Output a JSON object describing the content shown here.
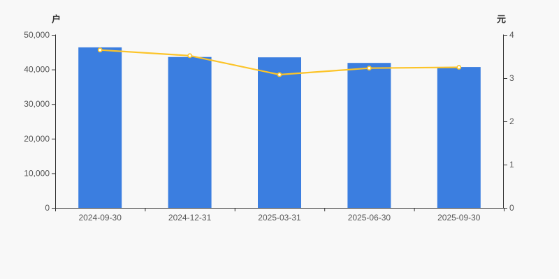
{
  "chart_data": {
    "type": "combo",
    "title": "",
    "categories": [
      "2024-09-30",
      "2024-12-31",
      "2025-03-31",
      "2025-06-30",
      "2025-09-30"
    ],
    "series": [
      {
        "name": "holders-bar",
        "type": "bar",
        "axis": "left",
        "color": "#3b7ee0",
        "values": [
          46400,
          43600,
          43500,
          41900,
          40700
        ]
      },
      {
        "name": "value-line",
        "type": "line",
        "axis": "right",
        "color": "#fcc428",
        "marker_fill": "#ffffff",
        "values": [
          3.65,
          3.52,
          3.08,
          3.23,
          3.25
        ]
      }
    ],
    "left_axis": {
      "title": "户",
      "min": 0,
      "max": 50000,
      "tick_labels": [
        "0",
        "10,000",
        "20,000",
        "30,000",
        "40,000",
        "50,000"
      ]
    },
    "right_axis": {
      "title": "元",
      "min": 0,
      "max": 4,
      "tick_labels": [
        "0",
        "1",
        "2",
        "3",
        "4"
      ]
    },
    "grid": false,
    "legend": "none",
    "axis_color": "#333333",
    "label_color": "#555555",
    "background": "#f8f8f8"
  }
}
